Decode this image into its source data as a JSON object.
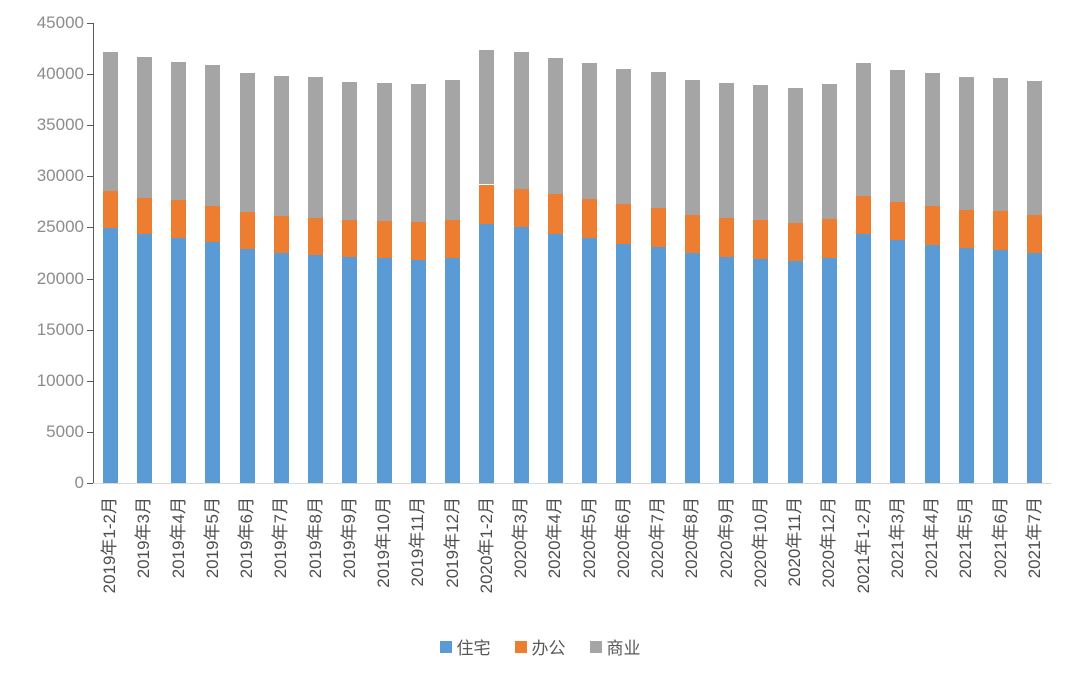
{
  "chart_data": {
    "type": "bar",
    "stacked": true,
    "title": "",
    "xlabel": "",
    "ylabel": "",
    "ylim": [
      0,
      45000
    ],
    "ytick_interval": 5000,
    "yticks": [
      "45000",
      "40000",
      "35000",
      "30000",
      "25000",
      "20000",
      "15000",
      "10000",
      "5000",
      "0"
    ],
    "grid": false,
    "legend_position": "bottom",
    "categories": [
      "2019年1-2月",
      "2019年3月",
      "2019年4月",
      "2019年5月",
      "2019年6月",
      "2019年7月",
      "2019年8月",
      "2019年9月",
      "2019年10月",
      "2019年11月",
      "2019年12月",
      "2020年1-2月",
      "2020年3月",
      "2020年4月",
      "2020年5月",
      "2020年6月",
      "2020年7月",
      "2020年8月",
      "2020年9月",
      "2020年10月",
      "2020年11月",
      "2020年12月",
      "2021年1-2月",
      "2021年3月",
      "2021年4月",
      "2021年5月",
      "2021年6月",
      "2021年7月"
    ],
    "series": [
      {
        "name": "住宅",
        "key": "residential",
        "color": "#5B9BD5",
        "values": [
          24900,
          24400,
          24000,
          23600,
          22900,
          22500,
          22300,
          22100,
          22000,
          21800,
          22000,
          25300,
          25000,
          24400,
          24000,
          23400,
          23100,
          22500,
          22100,
          21900,
          21700,
          22000,
          24400,
          23800,
          23300,
          23000,
          22800,
          22500
        ]
      },
      {
        "name": "办公",
        "key": "office",
        "color": "#ED7D31",
        "values": [
          3700,
          3500,
          3700,
          3500,
          3600,
          3600,
          3600,
          3600,
          3600,
          3700,
          3700,
          3900,
          3800,
          3900,
          3800,
          3900,
          3800,
          3700,
          3800,
          3800,
          3700,
          3800,
          3700,
          3700,
          3800,
          3700,
          3800,
          3700
        ]
      },
      {
        "name": "商业",
        "key": "commercial",
        "color": "#A5A5A5",
        "values": [
          13600,
          13800,
          13500,
          13800,
          13600,
          13700,
          13800,
          13500,
          13500,
          13500,
          13700,
          13200,
          13400,
          13300,
          13300,
          13200,
          13300,
          13200,
          13200,
          13200,
          13200,
          13200,
          13000,
          12900,
          13000,
          13000,
          13000,
          13100
        ]
      }
    ],
    "totals": [
      42200,
      41700,
      41200,
      40900,
      40100,
      39800,
      39700,
      39200,
      39100,
      39000,
      39400,
      42400,
      42200,
      41600,
      41100,
      40500,
      40200,
      39400,
      39100,
      38900,
      38600,
      39000,
      41100,
      40400,
      40100,
      39700,
      39600,
      39300
    ]
  },
  "colors": {
    "background": "#ffffff",
    "y_axis_line": "#595959",
    "x_axis_line": "#d9d9d9",
    "y_tick_label": "#8c8c8c",
    "x_tick_label": "#4d4d4d",
    "legend_text": "#595959"
  }
}
